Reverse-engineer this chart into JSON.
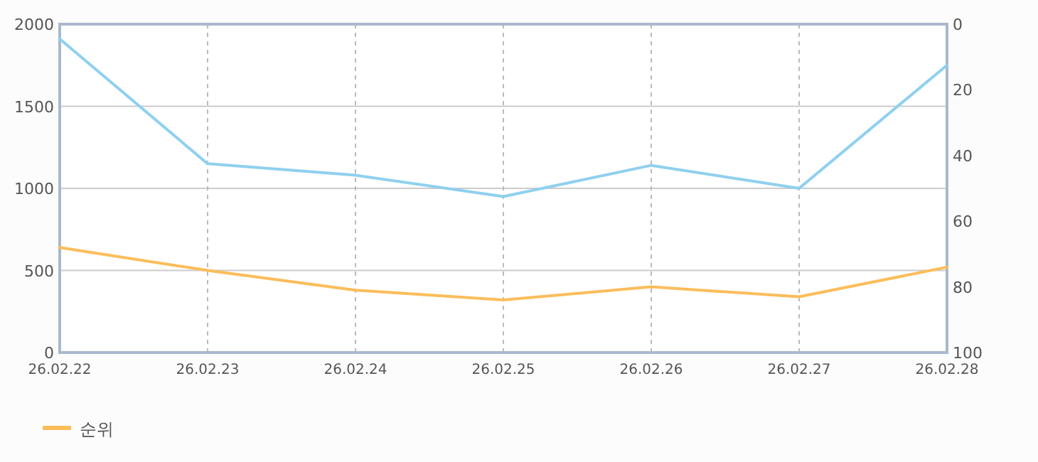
{
  "chart_data": {
    "type": "line",
    "categories": [
      "26.02.22",
      "26.02.23",
      "26.02.24",
      "26.02.25",
      "26.02.26",
      "26.02.27",
      "26.02.28"
    ],
    "series": [
      {
        "color": "#8fd0ef",
        "values": [
          1910,
          1150,
          1080,
          950,
          1140,
          1000,
          1750
        ]
      },
      {
        "name": "순위",
        "color": "#fbbd5a",
        "axis": "y2",
        "values": [
          68,
          75,
          81,
          84,
          80,
          83,
          74
        ]
      }
    ],
    "ylim": [
      0,
      2000
    ],
    "yticks": [
      0,
      500,
      1000,
      1500,
      2000
    ],
    "y2lim": [
      100,
      0
    ],
    "y2ticks": [
      0,
      20,
      40,
      60,
      80,
      100
    ],
    "grid": true,
    "legend": "bottom left",
    "marker": "none",
    "line_style": "solid"
  }
}
